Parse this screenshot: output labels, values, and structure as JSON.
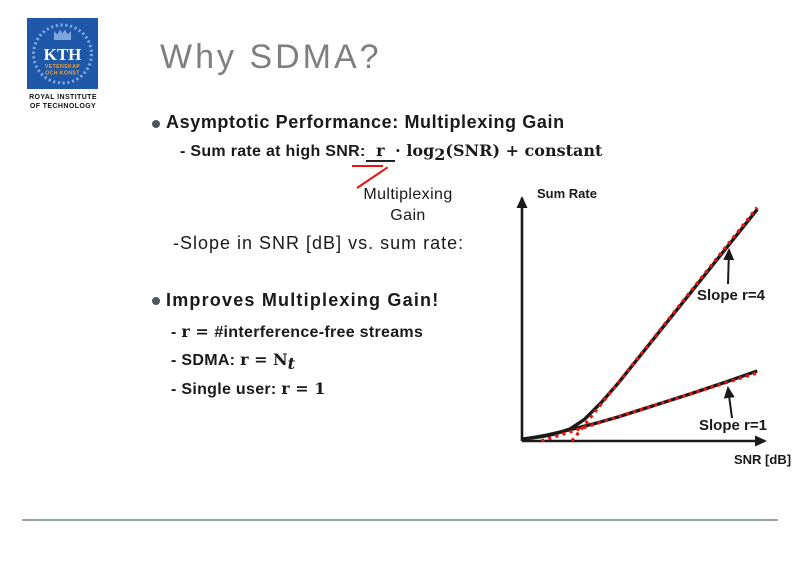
{
  "title": "Why SDMA?",
  "logo": {
    "kth": "KTH",
    "motto_line1": "VETENSKAP",
    "motto_line2": "OCH KONST",
    "institute_line1": "ROYAL INSTITUTE",
    "institute_line2": "OF TECHNOLOGY"
  },
  "content": {
    "bullet1": {
      "heading": "Asymptotic Performance: Multiplexing Gain",
      "sub1_prefix": "- Sum rate at high SNR:",
      "formula": {
        "r": " r ",
        "mid": "· log",
        "sub2": "2",
        "tail": "(SNR) + constant"
      }
    },
    "annotation": {
      "line1": "Multiplexing",
      "line2": "Gain"
    },
    "slope_line": "-Slope in SNR [dB] vs. sum rate:",
    "bullet2": {
      "heading": "Improves Multiplexing Gain!",
      "item1_dash": "- ",
      "item1_math": "r = ",
      "item1_text": "#interference-free streams",
      "item2_prefix": "- SDMA: ",
      "item2_math": "r = N",
      "item2_sub": "t",
      "item3_prefix": "- Single user: ",
      "item3_math": "r = 1"
    }
  },
  "chart_data": {
    "type": "line",
    "title": "",
    "xlabel": "SNR [dB]",
    "ylabel": "Sum Rate",
    "xlim": [
      0,
      100
    ],
    "ylim": [
      0,
      100
    ],
    "grid": false,
    "axes_style": "qualitative (no ticks, arrow axes)",
    "series": [
      {
        "name": "sum-rate capacity r=4",
        "color": "#1a1a1a",
        "style": "solid",
        "points": [
          [
            0,
            0.8
          ],
          [
            8,
            1.8
          ],
          [
            14,
            3
          ],
          [
            20,
            5
          ],
          [
            26,
            9
          ],
          [
            33,
            16
          ],
          [
            40,
            24
          ],
          [
            48,
            34
          ],
          [
            56,
            44
          ],
          [
            64,
            54
          ],
          [
            72,
            64
          ],
          [
            80,
            74
          ],
          [
            88,
            84
          ],
          [
            98,
            96.5
          ]
        ]
      },
      {
        "name": "sum-rate capacity r=1",
        "color": "#1a1a1a",
        "style": "solid",
        "points": [
          [
            0,
            0.6
          ],
          [
            10,
            2.4
          ],
          [
            20,
            4.7
          ],
          [
            30,
            7.2
          ],
          [
            40,
            10
          ],
          [
            55,
            14.8
          ],
          [
            70,
            19.6
          ],
          [
            85,
            24.6
          ],
          [
            98,
            29.2
          ]
        ]
      },
      {
        "name": "asymptote slope r=4",
        "color": "#e8150f",
        "style": "dotted",
        "points": [
          [
            20.8,
            0
          ],
          [
            98,
            97.3
          ]
        ]
      },
      {
        "name": "asymptote slope r=1",
        "color": "#e8150f",
        "style": "dotted",
        "points": [
          [
            8,
            0
          ],
          [
            98,
            28.4
          ]
        ]
      }
    ],
    "annotations": [
      {
        "text": "Slope r=4",
        "points_to": "steep line"
      },
      {
        "text": "Slope r=1",
        "points_to": "shallow line"
      }
    ]
  },
  "colors": {
    "accent_red": "#e8150f",
    "title_gray": "#7f7f7f",
    "bullet_dot": "#4d585c",
    "logo_blue": "#1f57a9",
    "logo_light_blue": "#7ea6dd",
    "logo_motto_orange": "#e8a33d",
    "divider_gray": "#9aa4a8",
    "line_black": "#1a1a1a"
  }
}
